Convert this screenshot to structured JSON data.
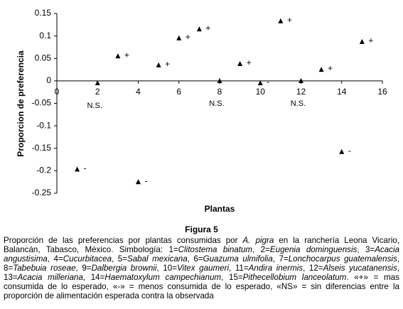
{
  "chart_data": {
    "type": "scatter",
    "x_label": "Plantas",
    "y_label": "Proporcion de preferencia",
    "x": [
      1,
      2,
      3,
      4,
      5,
      6,
      7,
      8,
      9,
      10,
      11,
      12,
      13,
      14,
      15
    ],
    "y": [
      -0.197,
      -0.005,
      0.055,
      -0.225,
      0.035,
      0.095,
      0.115,
      0,
      0.038,
      -0.005,
      0.133,
      0,
      0.025,
      -0.158,
      0.087
    ],
    "point_labels": [
      "-",
      null,
      "+",
      "-",
      "+",
      "+",
      "+",
      null,
      "+",
      "-",
      "+",
      null,
      "+",
      "-",
      "+"
    ],
    "below_labels": [
      null,
      "N.S.",
      null,
      null,
      null,
      null,
      null,
      "N.S.",
      null,
      null,
      null,
      "N.S.",
      null,
      null,
      null
    ],
    "color": "#000000",
    "xlim": [
      0,
      16
    ],
    "xticks": [
      0,
      2,
      4,
      6,
      8,
      10,
      12,
      14,
      16
    ],
    "ylim": [
      -0.25,
      0.15
    ],
    "yticks": [
      0.15,
      0.1,
      0.05,
      0,
      -0.05,
      -0.1,
      -0.15,
      -0.2,
      -0.25
    ],
    "grid": false
  },
  "caption": {
    "title": "Figura 5",
    "runs": [
      {
        "text": "Proporción de las preferencias por plantas consumidas por ",
        "italic": false
      },
      {
        "text": "A. pigra",
        "italic": true
      },
      {
        "text": " en la ranchería Leona Vicario, Balancán, Tabasco, México. Simbología: 1=",
        "italic": false
      },
      {
        "text": "Clitostema binatum",
        "italic": true
      },
      {
        "text": ", 2=",
        "italic": false
      },
      {
        "text": "Eugenia dominguensis",
        "italic": true
      },
      {
        "text": ", 3=",
        "italic": false
      },
      {
        "text": "Acacia angustisima",
        "italic": true
      },
      {
        "text": ", 4=",
        "italic": false
      },
      {
        "text": "Cucurbitacea",
        "italic": true
      },
      {
        "text": ", 5=",
        "italic": false
      },
      {
        "text": "Sabal mexicana",
        "italic": true
      },
      {
        "text": ", 6=",
        "italic": false
      },
      {
        "text": "Guazuma ulmifolia",
        "italic": true
      },
      {
        "text": ", 7=",
        "italic": false
      },
      {
        "text": "Lonchocarpus guatemalensis",
        "italic": true
      },
      {
        "text": ", 8=",
        "italic": false
      },
      {
        "text": "Tabebuia roseae",
        "italic": true
      },
      {
        "text": ", 9=",
        "italic": false
      },
      {
        "text": "Dalbergia brownii",
        "italic": true
      },
      {
        "text": ", 10=",
        "italic": false
      },
      {
        "text": "Vitex gaumeri",
        "italic": true
      },
      {
        "text": ", 11=",
        "italic": false
      },
      {
        "text": "Andira inermis",
        "italic": true
      },
      {
        "text": ", 12=",
        "italic": false
      },
      {
        "text": "Alseis yucatanensis",
        "italic": true
      },
      {
        "text": ", 13=",
        "italic": false
      },
      {
        "text": "Acacia milleriana",
        "italic": true
      },
      {
        "text": ", 14=",
        "italic": false
      },
      {
        "text": "Haematoxylum campechianum",
        "italic": true
      },
      {
        "text": ", 15=",
        "italic": false
      },
      {
        "text": "Pithecellobium lanceolatum",
        "italic": true
      },
      {
        "text": ". «+» = mas consumida de lo esperado, «-» = menos consumida de lo esperado, «NS» = sin diferencias entre la proporción de alimentación esperada contra la observada",
        "italic": false
      }
    ]
  }
}
